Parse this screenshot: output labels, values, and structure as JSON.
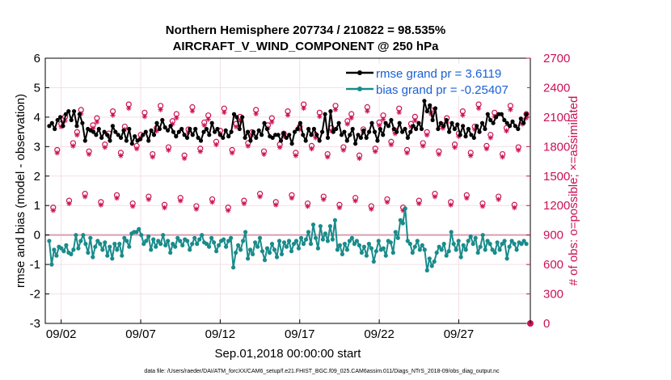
{
  "chart_data": {
    "type": "line",
    "title_line1": "Northern Hemisphere 207734 / 210822 = 98.535%",
    "title_line2": "AIRCRAFT_V_WIND_COMPONENT @ 250 hPa",
    "ylabel_left": "rmse and bias (model - observation)",
    "ylabel_right": "# of obs: o=possible; ×=assimilated",
    "xlabel": "Sep.01,2018 00:00:00 start",
    "footer": "data file: /Users/raeder/DAI/ATM_forcXX/CAM6_setup/f.e21.FHIST_BGC.f09_025.CAM6assim.011/Diags_NTrS_2018-09/obs_diag_output.nc",
    "ylim_left": [
      -3,
      6
    ],
    "yticks_left": [
      "-3",
      "-2",
      "-1",
      "0",
      "1",
      "2",
      "3",
      "4",
      "5",
      "6"
    ],
    "ylim_right": [
      0,
      2700
    ],
    "yticks_right": [
      "0",
      "300",
      "600",
      "900",
      "1200",
      "1500",
      "1800",
      "2100",
      "2400",
      "2700"
    ],
    "xlim_days": [
      0.5,
      31
    ],
    "xtick_days": [
      1.5,
      6.5,
      11.5,
      16.5,
      21.5,
      26.5
    ],
    "xtick_labels": [
      "09/02",
      "09/07",
      "09/12",
      "09/17",
      "09/22",
      "09/27"
    ],
    "zero_line_y": 0,
    "series": [
      {
        "name": "rmse grand pr = 3.6119",
        "color": "#000000",
        "values": [
          3.7,
          3.8,
          3.6,
          3.9,
          4.0,
          3.7,
          4.1,
          4.2,
          3.9,
          4.2,
          3.7,
          4.1,
          3.8,
          3.2,
          3.6,
          3.55,
          3.5,
          3.4,
          3.6,
          3.3,
          3.5,
          3.4,
          3.2,
          3.7,
          3.5,
          3.4,
          3.3,
          3.55,
          3.2,
          3.6,
          3.1,
          3.35,
          3.2,
          3.25,
          3.4,
          3.5,
          3.2,
          3.55,
          3.4,
          3.8,
          3.6,
          3.9,
          3.65,
          3.55,
          3.7,
          3.5,
          3.35,
          3.5,
          3.6,
          3.4,
          3.3,
          3.6,
          3.4,
          3.6,
          3.3,
          3.2,
          3.5,
          3.6,
          3.4,
          3.8,
          3.5,
          3.6,
          3.4,
          3.3,
          3.55,
          3.35,
          3.5,
          4.1,
          4.0,
          3.6,
          4.0,
          3.3,
          3.5,
          3.2,
          3.5,
          3.3,
          3.55,
          3.4,
          3.8,
          3.6,
          3.35,
          3.3,
          3.4,
          3.4,
          3.2,
          3.45,
          3.3,
          3.4,
          3.1,
          3.5,
          3.6,
          3.8,
          3.4,
          3.2,
          3.6,
          3.4,
          3.6,
          3.4,
          3.2,
          3.5,
          4.1,
          3.3,
          4.2,
          3.5,
          3.6,
          3.8,
          3.4,
          3.5,
          3.2,
          3.4,
          3.6,
          3.1,
          3.4,
          3.3,
          3.55,
          3.3,
          3.5,
          3.8,
          3.5,
          3.2,
          3.6,
          3.4,
          3.8,
          3.7,
          3.9,
          3.6,
          3.5,
          3.8,
          3.5,
          3.6,
          3.3,
          3.5,
          3.7,
          3.6,
          3.8,
          3.6,
          4.55,
          4.2,
          4.4,
          3.9,
          4.3,
          3.6,
          3.8,
          3.7,
          3.9,
          3.5,
          3.8,
          3.6,
          3.75,
          3.4,
          3.7,
          3.35,
          3.6,
          3.4,
          3.3,
          3.7,
          3.5,
          3.8,
          3.6,
          4.1,
          3.9,
          3.8,
          4.0,
          4.1,
          4.1,
          3.9,
          3.8,
          3.7,
          3.85,
          3.7,
          3.6,
          3.95,
          3.8,
          4.1
        ]
      },
      {
        "name": "bias grand pr = -0.25407",
        "color": "#1a8b8b",
        "values": [
          -0.2,
          -1.0,
          -0.5,
          -0.7,
          -0.4,
          -0.45,
          -0.55,
          -0.35,
          -0.6,
          -0.65,
          -0.5,
          0.0,
          -0.45,
          -0.2,
          0.0,
          -0.3,
          -0.6,
          -0.1,
          -0.75,
          -0.4,
          -0.2,
          -0.3,
          -0.5,
          -0.25,
          -0.7,
          -0.4,
          -0.8,
          -0.3,
          -0.5,
          -0.3,
          -0.7,
          -0.1,
          -0.2,
          -0.4,
          0.05,
          0.1,
          0.1,
          0.2,
          0.0,
          -0.3,
          -0.2,
          -0.05,
          -0.5,
          -0.15,
          -0.4,
          -0.2,
          -0.3,
          0.0,
          -0.35,
          -0.2,
          -0.6,
          -0.3,
          -0.4,
          -0.1,
          -0.2,
          -0.35,
          -0.15,
          -0.2,
          -0.5,
          -0.3,
          -0.1,
          -0.3,
          -0.15,
          0.0,
          -0.25,
          -0.3,
          -0.4,
          -0.1,
          -0.25,
          -0.55,
          -0.35,
          -0.2,
          -0.15,
          -0.4,
          -0.2,
          -0.1,
          -1.1,
          -0.6,
          -0.35,
          -0.5,
          -0.2,
          0.1,
          -0.8,
          -0.5,
          -0.65,
          -0.25,
          -0.4,
          -0.1,
          -0.55,
          -0.85,
          -0.45,
          -0.6,
          -0.3,
          -0.5,
          -0.75,
          -0.2,
          -0.65,
          -0.25,
          -0.4,
          -0.2,
          -0.55,
          -0.3,
          -0.2,
          -0.45,
          -0.1,
          -0.3,
          -0.15,
          0.1,
          -0.3,
          0.35,
          -0.1,
          -0.45,
          0.3,
          -0.15,
          0.05,
          -0.2,
          0.3,
          -0.15,
          0.5,
          -0.5,
          -0.35,
          -0.65,
          -0.3,
          -0.5,
          -0.2,
          -0.1,
          -0.3,
          -0.2,
          -0.35,
          -0.6,
          -0.4,
          -0.7,
          -0.3,
          -0.45,
          -0.9,
          -0.55,
          -0.2,
          -0.5,
          -0.45,
          -0.7,
          -0.2,
          -0.25,
          -0.6,
          0.1,
          -0.1,
          0.5,
          0.4,
          0.9,
          -0.2,
          -0.3,
          -0.6,
          -0.4,
          -0.2,
          -0.5,
          -0.35,
          -0.5,
          -1.2,
          -0.8,
          -1.05,
          -0.9,
          -0.6,
          -0.4,
          -0.5,
          -0.3,
          -0.7,
          -0.55,
          0.1,
          -0.3,
          -0.5,
          -0.2,
          -0.75,
          -0.35,
          -0.5,
          -0.2,
          -0.05,
          -0.3,
          -0.1,
          -0.6,
          -0.4,
          0.0,
          -0.5,
          -0.2,
          -0.3,
          -0.5,
          -0.6,
          -0.25,
          -0.5,
          -0.3,
          -0.2,
          -0.8,
          -0.4,
          -0.2,
          -0.3,
          -0.5,
          -0.25,
          -0.3,
          -0.2,
          -0.3
        ]
      }
    ],
    "obs_counts": {
      "cycle_pattern_possible": [
        1250,
        1780,
        1990,
        2160
      ],
      "cycle_pattern_assimilated": [
        1220,
        1750,
        1960,
        2120
      ]
    }
  }
}
